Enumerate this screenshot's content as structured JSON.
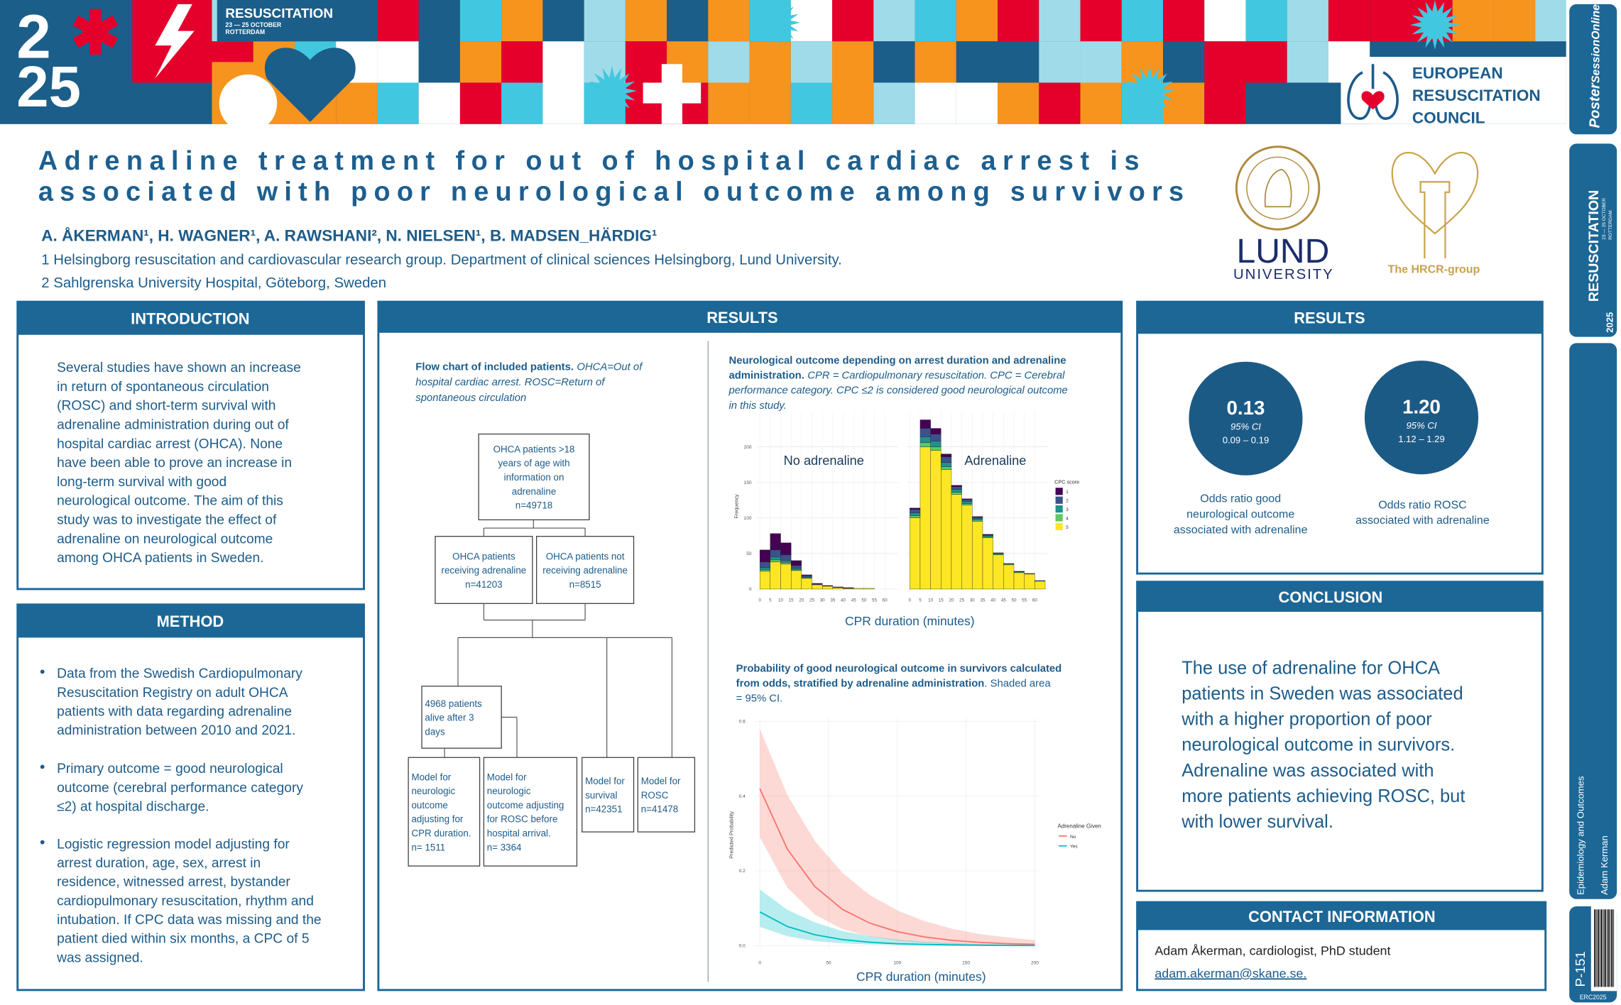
{
  "banner": {
    "year_top": "2",
    "year_bottom": "25",
    "event": "RESUSCITATION",
    "dates": "23 — 25 OCTOBER",
    "city": "ROTTERDAM",
    "org": [
      "EUROPEAN",
      "RESUSCITATION",
      "COUNCIL"
    ]
  },
  "header": {
    "title": [
      "Adrenaline treatment for out of hospital cardiac arrest is",
      "associated with poor neurological outcome among survivors"
    ],
    "authors": "A. ÅKERMAN¹, H. WAGNER¹, A. RAWSHANI², N. NIELSEN¹, B. MADSEN_HÄRDIG¹",
    "affiliations": [
      "1 Helsingborg resuscitation and cardiovascular research group. Department of clinical sciences Helsingborg, Lund University.",
      "2 Sahlgrenska University Hospital, Göteborg, Sweden"
    ],
    "lund": [
      "LUND",
      "UNIVERSITY"
    ],
    "hrcr": "The HRCR-group"
  },
  "introduction": {
    "heading": "INTRODUCTION",
    "lines": [
      "Several studies have shown an increase",
      "in return of spontaneous circulation",
      "(ROSC) and short-term survival with",
      "adrenaline administration during out of",
      "hospital cardiac arrest (OHCA). None",
      "have been able to prove an increase in",
      "long-term survival with good",
      "neurological outcome. The aim of this",
      "study was to investigate the effect of",
      "adrenaline on neurological outcome",
      "among OHCA patients in Sweden."
    ]
  },
  "method": {
    "heading": "METHOD",
    "bullets": [
      [
        "Data from the Swedish Cardiopulmonary",
        "Resuscitation Registry on adult OHCA",
        "patients with data regarding adrenaline",
        "administration  between 2010 and 2021."
      ],
      [
        "Primary outcome = good neurological",
        "outcome (cerebral performance category",
        "≤2) at hospital discharge."
      ],
      [
        "Logistic regression model adjusting for",
        "arrest duration, age, sex, arrest in",
        "residence, witnessed arrest, bystander",
        "cardiopulmonary resuscitation, rhythm and",
        "intubation. If CPC data was missing and the",
        "patient died within six months, a CPC of 5",
        "was assigned."
      ]
    ]
  },
  "results": {
    "heading": "RESULTS",
    "flow_caption": {
      "title_lines": [
        "Flow chart of included patients."
      ],
      "note_lines": [
        "OHCA=Out of",
        "hospital cardiac arrest. ROSC=Return of",
        "spontaneous circulation"
      ]
    },
    "flowchart": {
      "nodes": [
        {
          "lines": [
            "OHCA patients >18",
            "years of age with",
            "information on",
            "adrenaline",
            "n=49718"
          ]
        },
        {
          "lines": [
            "OHCA patients",
            "receiving adrenaline",
            "n=41203"
          ]
        },
        {
          "lines": [
            "OHCA patients not",
            "receiving adrenaline",
            "n=8515"
          ]
        },
        {
          "lines": [
            "4968 patients",
            "alive after 3",
            "days"
          ]
        },
        {
          "lines": [
            "Model for",
            "neurologic",
            "outcome",
            "adjusting for",
            "CPR duration.",
            "n= 1511"
          ]
        },
        {
          "lines": [
            "Model for",
            "neurologic",
            "outcome adjusting",
            "for ROSC before",
            "hospital arrival.",
            "n= 3364"
          ]
        },
        {
          "lines": [
            "Model for",
            "survival",
            "n=42351"
          ]
        },
        {
          "lines": [
            "Model for",
            "ROSC",
            "n=41478"
          ]
        }
      ]
    },
    "hist_caption": {
      "title_lines": [
        "Neurological outcome depending on arrest duration and adrenaline",
        "administration."
      ],
      "note_lines": [
        "CPR = Cardiopulmonary resuscitation. CPC = Cerebral",
        "performance category. CPC ≤2 is considered good neurological outcome",
        "in this study."
      ]
    },
    "prob_caption": {
      "title_lines": [
        "Probability of good neurological outcome in survivors calculated",
        "from odds, stratified by adrenaline administration"
      ],
      "note_lines": [
        ". Shaded area",
        "= 95% CI."
      ]
    }
  },
  "results_summary": {
    "heading": "RESULTS",
    "odds_ratios": [
      {
        "value": "0.13",
        "ci_label": "95% CI",
        "ci": "0.09 – 0.19",
        "caption": [
          "Odds ratio good",
          "neurological outcome",
          "associated with adrenaline"
        ]
      },
      {
        "value": "1.20",
        "ci_label": "95% CI",
        "ci": "1.12 – 1.29",
        "caption": [
          "Odds ratio ROSC",
          "associated with adrenaline"
        ]
      }
    ]
  },
  "conclusion": {
    "heading": "CONCLUSION",
    "lines": [
      "The use of adrenaline for OHCA",
      "patients in Sweden was associated",
      "with a higher proportion of poor",
      "neurological outcome in survivors.",
      "Adrenaline was associated with",
      "more patients achieving ROSC, but",
      "with lower survival."
    ]
  },
  "contact": {
    "heading": "CONTACT INFORMATION",
    "name": "Adam Åkerman, cardiologist, PhD student",
    "email": "adam.akerman@skane.se."
  },
  "sidebar": {
    "brand": [
      "Poster",
      "SessionOnline"
    ],
    "event": "RESUSCITATION",
    "year": "2025",
    "dates": "23 — 25 OCTOBER",
    "city": "ROTTERDAM",
    "topic": "Epidemiology and Outcomes",
    "author": "Adam Kerman",
    "poster_id": "P-151",
    "footer": "ERC2025"
  },
  "chart_data": [
    {
      "type": "histogram",
      "xlabel": "CPR duration (minutes)",
      "ylabel": "Frequency",
      "legend_title": "CPC score",
      "ylim": [
        0,
        250
      ],
      "yticks": [
        0,
        50,
        100,
        150,
        200
      ],
      "xlim": [
        0,
        65
      ],
      "xticks": [
        0,
        5,
        10,
        15,
        20,
        25,
        30,
        35,
        40,
        45,
        50,
        55,
        60
      ],
      "bins": [
        0,
        5,
        10,
        15,
        20,
        25,
        30,
        35,
        40,
        45,
        50,
        55,
        60,
        65
      ],
      "grid": true,
      "panels": [
        {
          "title": "No adrenaline",
          "series": [
            {
              "name": "1",
              "color": "#440154",
              "values": [
                17,
                23,
                17,
                7,
                1,
                1,
                1,
                1,
                1,
                0,
                0,
                0,
                0
              ]
            },
            {
              "name": "2",
              "color": "#3b528b",
              "values": [
                8,
                10,
                8,
                4,
                2,
                1,
                0,
                0,
                0,
                0,
                0,
                0,
                0
              ]
            },
            {
              "name": "3",
              "color": "#21918c",
              "values": [
                3,
                4,
                3,
                2,
                1,
                0,
                0,
                0,
                0,
                0,
                0,
                0,
                0
              ]
            },
            {
              "name": "4",
              "color": "#5ec962",
              "values": [
                2,
                3,
                2,
                1,
                1,
                0,
                0,
                0,
                0,
                0,
                0,
                0,
                0
              ]
            },
            {
              "name": "5",
              "color": "#fde725",
              "values": [
                25,
                38,
                35,
                26,
                15,
                6,
                4,
                2,
                1,
                1,
                1,
                0,
                0
              ]
            }
          ]
        },
        {
          "title": "Adrenaline",
          "series": [
            {
              "name": "1",
              "color": "#440154",
              "values": [
                2,
                12,
                8,
                4,
                2,
                1,
                1,
                1,
                0,
                0,
                1,
                0,
                0
              ]
            },
            {
              "name": "2",
              "color": "#3b528b",
              "values": [
                5,
                12,
                10,
                8,
                4,
                3,
                2,
                1,
                1,
                1,
                0,
                1,
                1
              ]
            },
            {
              "name": "3",
              "color": "#21918c",
              "values": [
                4,
                8,
                8,
                6,
                4,
                3,
                2,
                2,
                1,
                0,
                0,
                0,
                0
              ]
            },
            {
              "name": "4",
              "color": "#5ec962",
              "values": [
                3,
                6,
                5,
                4,
                3,
                2,
                2,
                1,
                1,
                1,
                1,
                0,
                0
              ]
            },
            {
              "name": "5",
              "color": "#fde725",
              "values": [
                100,
                200,
                195,
                168,
                133,
                118,
                95,
                72,
                48,
                34,
                23,
                21,
                11
              ]
            }
          ]
        }
      ]
    },
    {
      "type": "line",
      "xlabel": "CPR duration (minutes)",
      "ylabel": "Predicted Probability",
      "legend_title": "Adrenaline Given",
      "x": [
        0,
        20,
        40,
        60,
        80,
        100,
        120,
        140,
        160,
        180,
        200
      ],
      "xlim": [
        0,
        200
      ],
      "ylim": [
        0,
        0.6
      ],
      "xticks": [
        0,
        50,
        100,
        150,
        200
      ],
      "yticks": [
        {
          "value": 0,
          "label": "0.0"
        },
        0.2,
        0.4,
        0.6
      ],
      "grid": true,
      "series": [
        {
          "name": "No",
          "color": "#f8766d",
          "values": [
            0.42,
            0.258,
            0.158,
            0.097,
            0.06,
            0.037,
            0.023,
            0.014,
            0.0085,
            0.0052,
            0.0032
          ],
          "lower": [
            0.29,
            0.155,
            0.083,
            0.044,
            0.024,
            0.013,
            0.007,
            0.0036,
            0.0019,
            0.001,
            0.0005
          ],
          "upper": [
            0.58,
            0.403,
            0.28,
            0.195,
            0.135,
            0.094,
            0.065,
            0.045,
            0.031,
            0.022,
            0.015
          ]
        },
        {
          "name": "Yes",
          "color": "#00bfc4",
          "values": [
            0.09,
            0.051,
            0.029,
            0.016,
            0.009,
            0.005,
            0.003,
            0.0017,
            0.001,
            0.0005,
            0.0003
          ],
          "lower": [
            0.05,
            0.025,
            0.012,
            0.006,
            0.003,
            0.0014,
            0.0007,
            0.0003,
            0.0002,
            0.0001,
            0
          ],
          "upper": [
            0.15,
            0.096,
            0.062,
            0.039,
            0.025,
            0.016,
            0.01,
            0.007,
            0.004,
            0.003,
            0.002
          ]
        }
      ]
    }
  ]
}
